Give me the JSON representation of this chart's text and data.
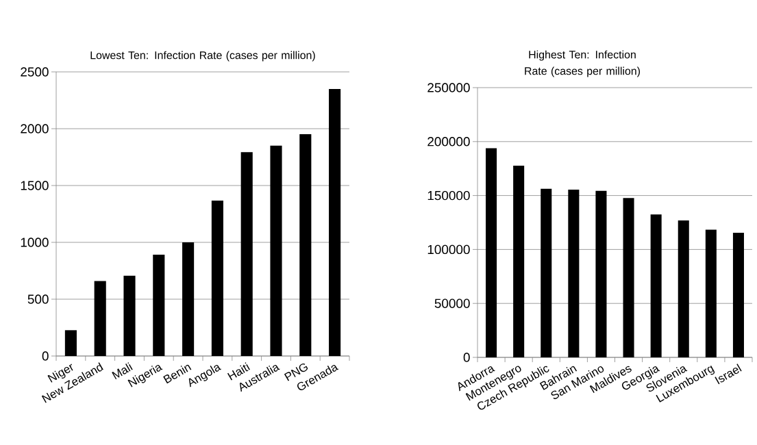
{
  "chart_data": [
    {
      "type": "bar",
      "title": "Lowest Ten: Infection Rate (cases per million)",
      "categories": [
        "Niger",
        "New Zealand",
        "Mali",
        "Nigeria",
        "Benin",
        "Angola",
        "Haiti",
        "Australia",
        "PNG",
        "Grenada"
      ],
      "values": [
        227,
        660,
        706,
        891,
        1000,
        1368,
        1793,
        1851,
        1952,
        2350
      ],
      "color": "#000000",
      "ylim": [
        0,
        2500
      ],
      "yticks": [
        0,
        500,
        1000,
        1500,
        2000,
        2500
      ],
      "grid": "y"
    },
    {
      "type": "bar",
      "title": "Highest Ten: Infection Rate (cases per million)",
      "categories": [
        "Andorra",
        "Montenegro",
        "Czech Republic",
        "Bahrain",
        "San Marino",
        "Maldives",
        "Georgia",
        "Slovenia",
        "Luxembourg",
        "Israel"
      ],
      "values": [
        193900,
        177600,
        156200,
        155400,
        154400,
        147700,
        132400,
        126900,
        118300,
        115500
      ],
      "color": "#000000",
      "ylim": [
        0,
        250000
      ],
      "yticks": [
        0,
        50000,
        100000,
        150000,
        200000,
        250000
      ],
      "grid": "y"
    }
  ]
}
